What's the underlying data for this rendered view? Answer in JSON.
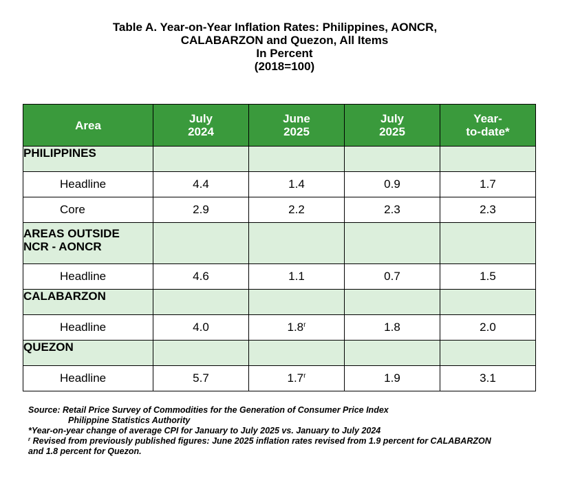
{
  "title": {
    "line1": "Table A. Year-on-Year Inflation Rates: Philippines, AONCR,",
    "line2": "CALABARZON and Quezon, All Items",
    "line3": "In Percent",
    "line4": "(2018=100)"
  },
  "headers": {
    "area": "Area",
    "c1a": "July",
    "c1b": "2024",
    "c2a": "June",
    "c2b": "2025",
    "c3a": "July",
    "c3b": "2025",
    "c4a": "Year-",
    "c4b": "to-date*"
  },
  "rows": {
    "philippines": {
      "name": "PHILIPPINES",
      "headline": {
        "label": "Headline",
        "v1": "4.4",
        "v2": "1.4",
        "v3": "0.9",
        "v4": "1.7"
      },
      "core": {
        "label": "Core",
        "v1": "2.9",
        "v2": "2.2",
        "v3": "2.3",
        "v4": "2.3"
      }
    },
    "aoncr": {
      "name1": "AREAS OUTSIDE",
      "name2": "NCR - AONCR",
      "headline": {
        "label": "Headline",
        "v1": "4.6",
        "v2": "1.1",
        "v3": "0.7",
        "v4": "1.5"
      }
    },
    "calabarzon": {
      "name": "CALABARZON",
      "headline": {
        "label": "Headline",
        "v1": "4.0",
        "v2": "1.8",
        "v2_mark": "r",
        "v3": "1.8",
        "v4": "2.0"
      }
    },
    "quezon": {
      "name": "QUEZON",
      "headline": {
        "label": "Headline",
        "v1": "5.7",
        "v2": "1.7",
        "v2_mark": "r",
        "v3": "1.9",
        "v4": "3.1"
      }
    }
  },
  "notes": {
    "source1": "Source: Retail Price Survey of Commodities for the Generation of Consumer Price Index",
    "source2": "Philippine Statistics Authority",
    "ytd": "*Year-on-year change of average CPI for January to July 2025 vs. January to July 2024",
    "revised_mark": "r",
    "revised1": " Revised from previously published figures: June 2025 inflation rates revised from 1.9 percent for CALABARZON",
    "revised2": "and 1.8 percent for Quezon."
  }
}
